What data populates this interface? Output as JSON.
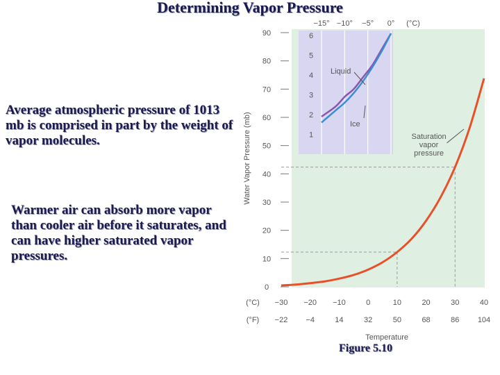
{
  "slide": {
    "title": "Determining Vapor Pressure",
    "paragraph_1": "Average atmospheric pressure of 1013 mb is comprised in part by the weight of vapor molecules.",
    "paragraph_2": "Warmer air can absorb more vapor than cooler air before it saturates, and can have higher saturated vapor pressures.",
    "caption": "Figure 5.10"
  },
  "chart_data": [
    {
      "type": "line",
      "title": "",
      "xlabel": "Temperature",
      "ylabel": "Water Vapor Pressure (mb)",
      "x_unit_label_c": "(°C)",
      "x_unit_label_f": "(°F)",
      "xlim": [
        -30,
        40
      ],
      "ylim": [
        0,
        90
      ],
      "x_ticks_c": [
        "−30",
        "−20",
        "−10",
        "0",
        "10",
        "20",
        "30",
        "40"
      ],
      "x_ticks_f": [
        "−22",
        "−4",
        "14",
        "32",
        "50",
        "68",
        "86",
        "104"
      ],
      "y_ticks": [
        "0",
        "10",
        "20",
        "30",
        "40",
        "50",
        "60",
        "70",
        "80",
        "90"
      ],
      "series": [
        {
          "name": "Saturation vapor pressure",
          "color": "#e8502a",
          "x": [
            -30,
            -25,
            -20,
            -15,
            -10,
            -5,
            0,
            5,
            10,
            15,
            20,
            25,
            30,
            35,
            40
          ],
          "y": [
            0.5,
            0.8,
            1.3,
            1.9,
            2.9,
            4.2,
            6.1,
            8.7,
            12.3,
            17.0,
            23.4,
            31.7,
            42.4,
            56.2,
            73.8
          ]
        }
      ],
      "reference_lines": [
        {
          "temperature_c": 10,
          "vapor_pressure_mb": 12.3
        },
        {
          "temperature_c": 30,
          "vapor_pressure_mb": 42.4
        }
      ],
      "annotations": [
        {
          "text": "Saturation vapor pressure",
          "x": 20,
          "y": 48
        }
      ],
      "grid": false,
      "background_color": "#dff0e2"
    },
    {
      "type": "line",
      "title": "",
      "xlim": [
        -15,
        0
      ],
      "ylim": [
        0,
        6
      ],
      "x_unit_label": "(°C)",
      "x_ticks": [
        "−15°",
        "−10°",
        "−5°",
        "0°"
      ],
      "y_ticks": [
        "1",
        "2",
        "3",
        "4",
        "5",
        "6"
      ],
      "series": [
        {
          "name": "Liquid",
          "color": "#8b55a8",
          "x": [
            -15,
            -12,
            -10,
            -8,
            -6,
            -4,
            -2,
            0
          ],
          "y": [
            1.9,
            2.4,
            2.9,
            3.3,
            3.9,
            4.5,
            5.3,
            6.1
          ]
        },
        {
          "name": "Ice",
          "color": "#3a8fd4",
          "x": [
            -15,
            -12,
            -10,
            -8,
            -6,
            -4,
            -2,
            0
          ],
          "y": [
            1.6,
            2.2,
            2.6,
            3.1,
            3.7,
            4.4,
            5.2,
            6.1
          ]
        }
      ],
      "grid": true,
      "background_color": "#d8d6f0"
    }
  ]
}
